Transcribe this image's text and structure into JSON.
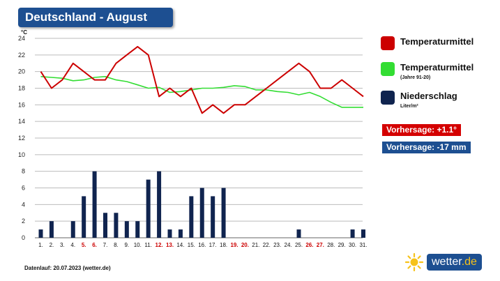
{
  "header": {
    "title": "Deutschland - August"
  },
  "chart_data": {
    "type": "line+bar",
    "y_unit": "°C",
    "ylim": [
      0,
      24
    ],
    "yticks": [
      0,
      2,
      4,
      6,
      8,
      10,
      12,
      14,
      16,
      18,
      20,
      22,
      24
    ],
    "categories": [
      "1.",
      "2.",
      "3.",
      "4.",
      "5.",
      "6.",
      "7.",
      "8.",
      "9.",
      "10.",
      "11.",
      "12.",
      "13.",
      "14.",
      "15.",
      "16.",
      "17.",
      "18.",
      "19.",
      "20.",
      "21.",
      "22.",
      "23.",
      "24.",
      "25.",
      "26.",
      "27.",
      "28.",
      "29.",
      "30.",
      "31."
    ],
    "weekend_days": [
      5,
      6,
      12,
      13,
      19,
      20,
      26,
      27
    ],
    "series": [
      {
        "name": "Temperaturmittel",
        "type": "line",
        "color": "#cc0000",
        "values": [
          20,
          18,
          19,
          21,
          20,
          19,
          19,
          21,
          22,
          23,
          22,
          17,
          18,
          17,
          18,
          15,
          16,
          15,
          16,
          16,
          17,
          18,
          19,
          20,
          21,
          20,
          18,
          18,
          19,
          18,
          17
        ]
      },
      {
        "name": "Temperaturmittel",
        "subtitle": "(Jahre 91-20)",
        "type": "line",
        "color": "#33dd33",
        "values": [
          19.4,
          19.3,
          19.2,
          18.9,
          19.0,
          19.3,
          19.4,
          19.0,
          18.8,
          18.4,
          18.0,
          18.1,
          17.5,
          17.6,
          17.8,
          18.0,
          18.0,
          18.1,
          18.3,
          18.2,
          17.8,
          17.8,
          17.6,
          17.5,
          17.2,
          17.5,
          17.0,
          16.3,
          15.7,
          15.7,
          15.7
        ]
      },
      {
        "name": "Niederschlag",
        "unit": "Liter/m²",
        "type": "bar",
        "color": "#10244f",
        "values": [
          1,
          2,
          0,
          2,
          5,
          8,
          3,
          3,
          2,
          2,
          7,
          8,
          1,
          1,
          5,
          6,
          5,
          6,
          0,
          0,
          0,
          0,
          0,
          0,
          1,
          0,
          0,
          0,
          0,
          1,
          1
        ]
      }
    ]
  },
  "legend": {
    "temp": "Temperaturmittel",
    "temp_hist": "Temperaturmittel",
    "temp_hist_sub": "(Jahre 91-20)",
    "precip": "Niederschlag",
    "precip_unit": "Liter/m²",
    "colors": {
      "temp": "#cc0000",
      "temp_hist": "#33dd33",
      "precip": "#10244f"
    }
  },
  "forecast": {
    "temp": "Vorhersage: +1.1°",
    "precip": "Vorhersage: -17 mm",
    "colors": {
      "temp": "#d40000",
      "precip": "#1d4f91"
    }
  },
  "footer": {
    "text": "Datenlauf: 20.07.2023 (wetter.de)"
  },
  "logo": {
    "text": "wetter",
    "suffix": ".de",
    "icon": "sun-icon"
  }
}
